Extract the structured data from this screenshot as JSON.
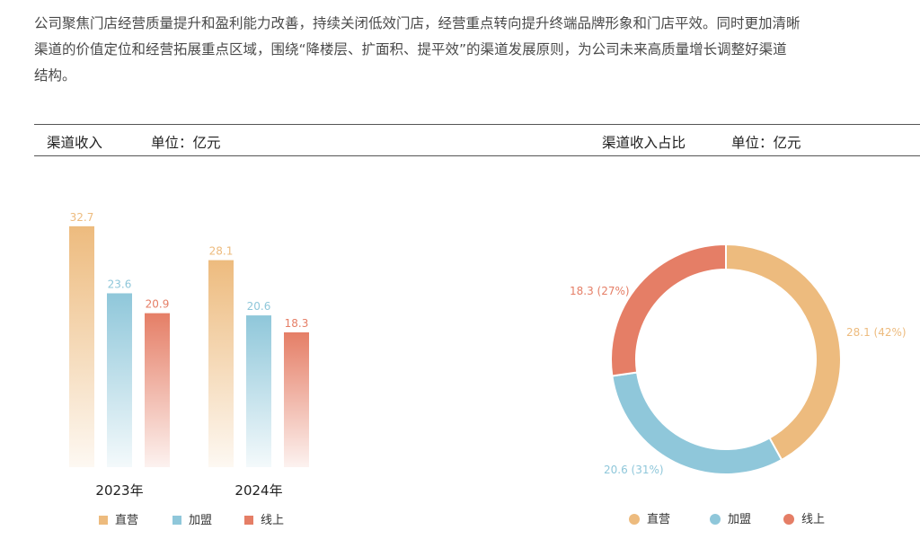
{
  "paragraph": {
    "line1": "公司聚焦门店经营质量提升和盈利能力改善，持续关闭低效门店，经营重点转向提升终端品牌形象和门店平效。同时更加清晰",
    "line2": "渠道的价值定位和经营拓展重点区域，围绕“降楼层、扩面积、提平效”的渠道发展原则，为公司未来高质量增长调整好渠道",
    "line3": "结构。"
  },
  "header": {
    "left_title": "渠道收入",
    "left_unit": "单位：亿元",
    "right_title": "渠道收入占比",
    "right_unit": "单位：亿元"
  },
  "colors": {
    "direct": "#EDBB7E",
    "franchise": "#8FC7DA",
    "online": "#E57E66"
  },
  "chart_data": [
    {
      "type": "bar",
      "categories": [
        "2023年",
        "2024年"
      ],
      "series": [
        {
          "name": "直营",
          "values": [
            32.7,
            28.1
          ]
        },
        {
          "name": "加盟",
          "values": [
            23.6,
            20.6
          ]
        },
        {
          "name": "线上",
          "values": [
            20.9,
            18.3
          ]
        }
      ],
      "data_labels": [
        [
          "32.7",
          "23.6",
          "20.9"
        ],
        [
          "28.1",
          "20.6",
          "18.3"
        ]
      ],
      "legend": "bottom"
    },
    {
      "type": "pie",
      "variant": "donut",
      "slices": [
        {
          "name": "直营",
          "value": 28.1,
          "percent": 42,
          "label": "28.1 (42%)"
        },
        {
          "name": "加盟",
          "value": 20.6,
          "percent": 31,
          "label": "20.6 (31%)"
        },
        {
          "name": "线上",
          "value": 18.3,
          "percent": 27,
          "label": "18.3 (27%)"
        }
      ],
      "legend": "bottom"
    }
  ]
}
